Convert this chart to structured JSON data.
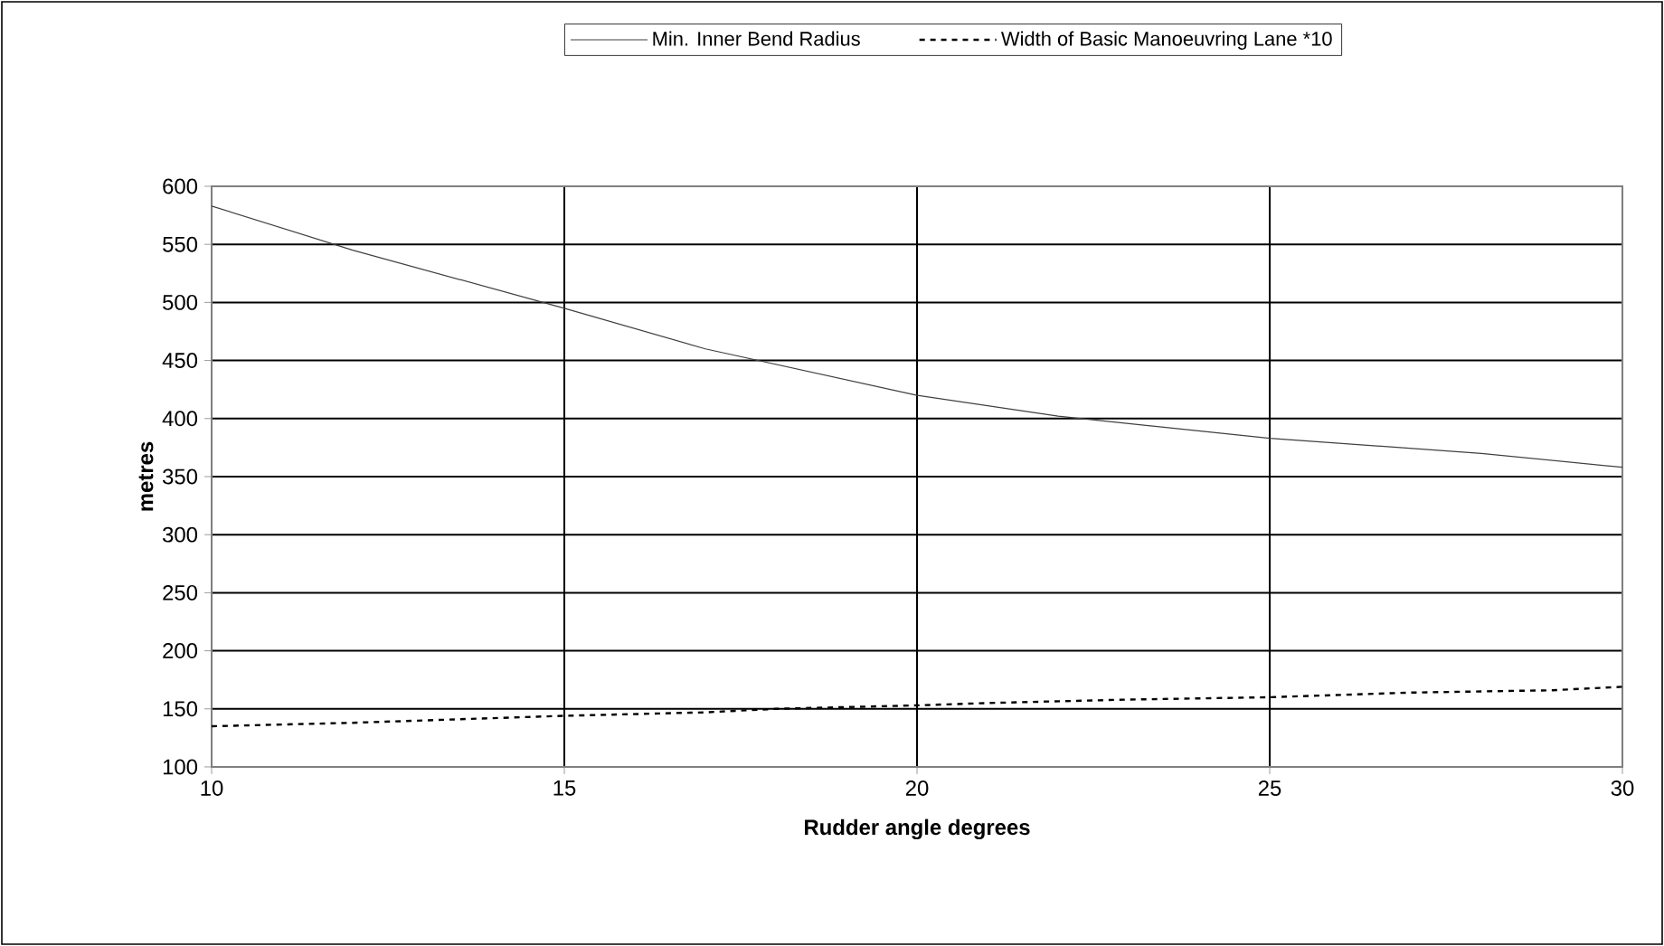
{
  "chart_data": {
    "type": "line",
    "xlabel": "Rudder angle degrees",
    "ylabel": "metres",
    "xlim": [
      10,
      30
    ],
    "xticks": [
      10,
      15,
      20,
      25,
      30
    ],
    "ylim": [
      100,
      600
    ],
    "yticks": [
      100,
      150,
      200,
      250,
      300,
      350,
      400,
      450,
      500,
      550,
      600
    ],
    "grid": true,
    "legend": "top",
    "marker": "none",
    "series": [
      {
        "name": "Min. Inner Bend Radius",
        "color": "#404040",
        "line_style": "solid",
        "x": [
          10,
          12,
          15,
          17,
          20,
          22,
          25,
          28,
          30
        ],
        "values": [
          583,
          545,
          495,
          460,
          420,
          402,
          383,
          370,
          358
        ]
      },
      {
        "name": "Width of Basic Manoeuvring Lane *10",
        "color": "#000000",
        "line_style": "dashed",
        "x": [
          10,
          12,
          13,
          15,
          17,
          18,
          20,
          21,
          23,
          25,
          27,
          29,
          30
        ],
        "values": [
          135,
          138,
          140,
          144,
          147,
          150,
          153,
          155,
          158,
          160,
          164,
          166,
          169
        ]
      }
    ]
  }
}
